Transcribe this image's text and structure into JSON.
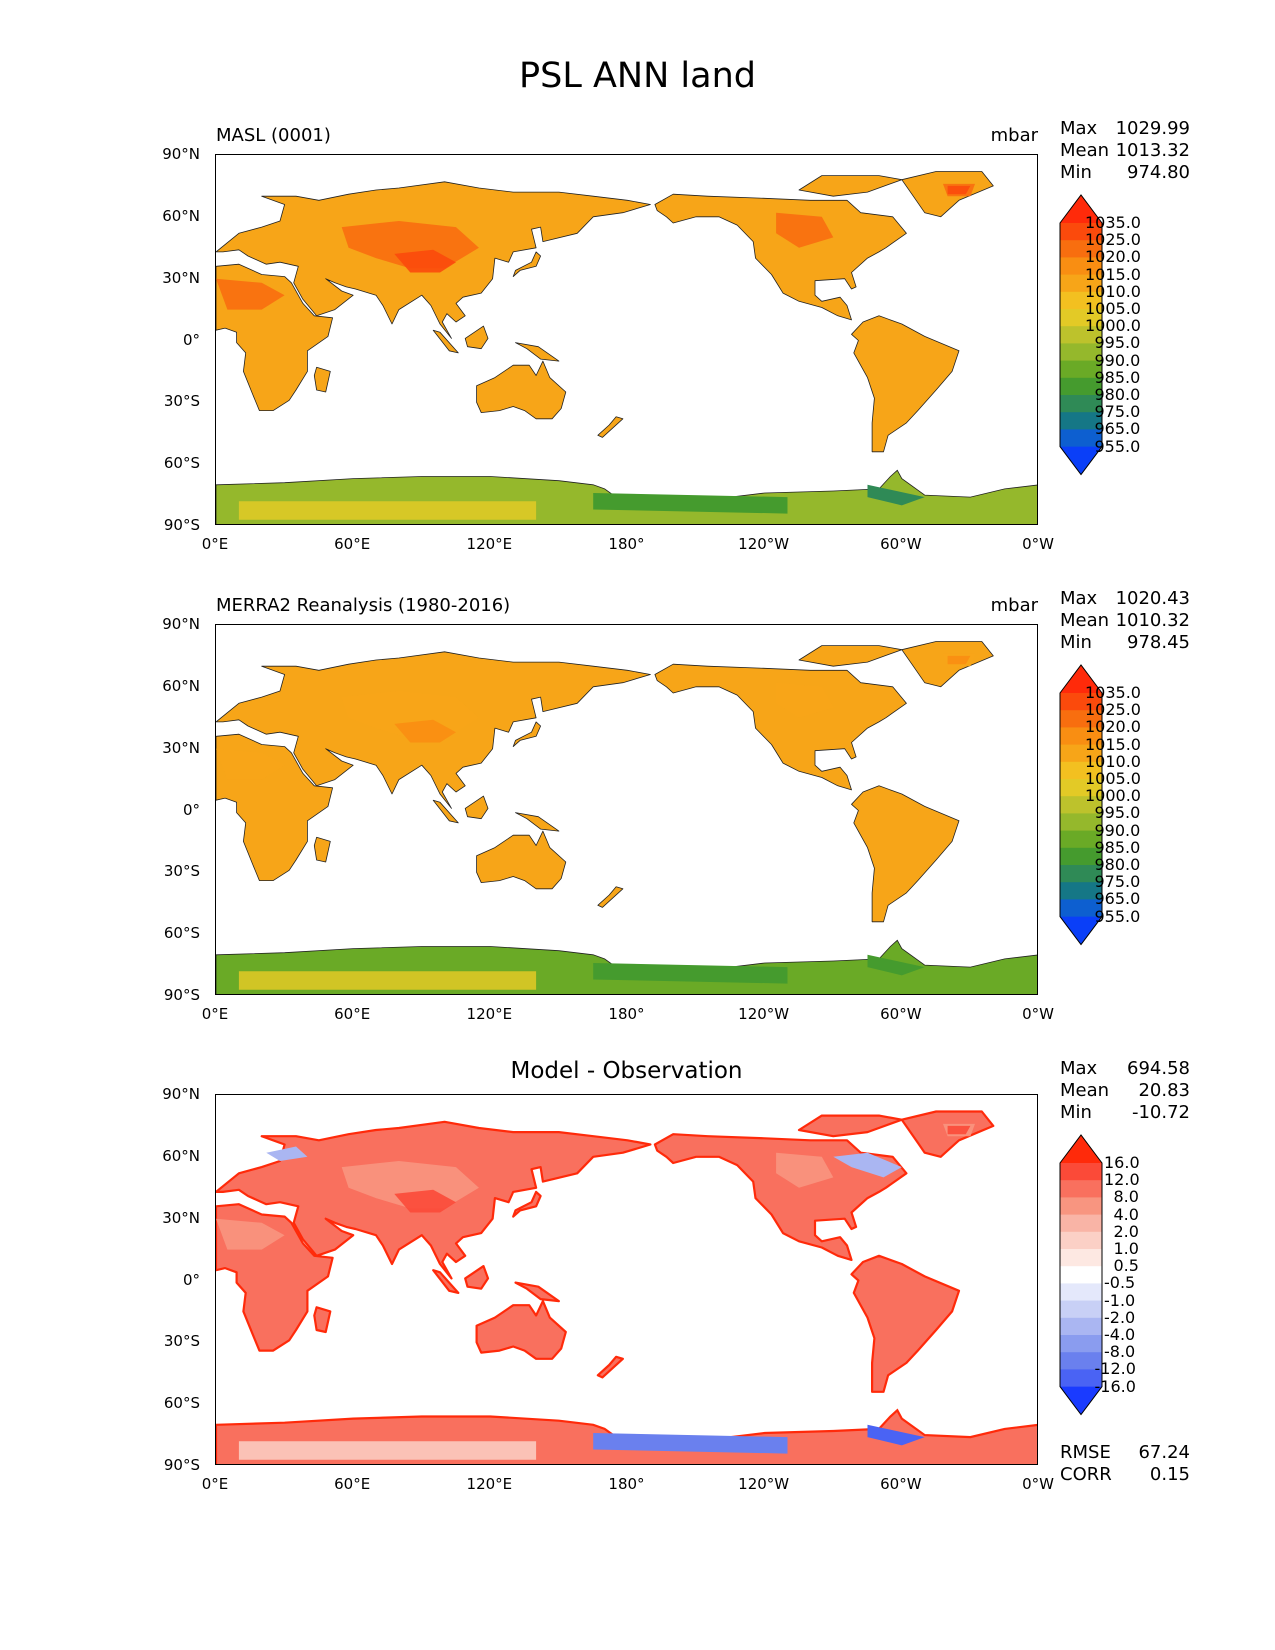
{
  "title": "PSL ANN land",
  "panels": [
    {
      "name": "model",
      "title_left": "MASL (0001)",
      "title_right": "mbar",
      "title_center": "",
      "stats": {
        "max_label": "Max",
        "max": "1029.99",
        "mean_label": "Mean",
        "mean": "1013.32",
        "min_label": "Min",
        "min": "974.80"
      },
      "colorbar": {
        "levels": [
          "1035.0",
          "1025.0",
          "1020.0",
          "1015.0",
          "1010.0",
          "1005.0",
          "1000.0",
          "995.0",
          "990.0",
          "985.0",
          "980.0",
          "975.0",
          "965.0",
          "955.0"
        ],
        "colors": [
          "#ff2a0a",
          "#fb4a0c",
          "#f86e0f",
          "#f98e12",
          "#f7a518",
          "#f3c020",
          "#e3ca26",
          "#bdc22c",
          "#95b82c",
          "#6aaa26",
          "#459b2e",
          "#2f8a56",
          "#157786",
          "#0d5fd0",
          "#0a3ff8"
        ]
      }
    },
    {
      "name": "observation",
      "title_left": "MERRA2 Reanalysis (1980-2016)",
      "title_right": "mbar",
      "title_center": "",
      "stats": {
        "max_label": "Max",
        "max": "1020.43",
        "mean_label": "Mean",
        "mean": "1010.32",
        "min_label": "Min",
        "min": "978.45"
      },
      "colorbar": {
        "levels": [
          "1035.0",
          "1025.0",
          "1020.0",
          "1015.0",
          "1010.0",
          "1005.0",
          "1000.0",
          "995.0",
          "990.0",
          "985.0",
          "980.0",
          "975.0",
          "965.0",
          "955.0"
        ],
        "colors": [
          "#ff2a0a",
          "#fb4a0c",
          "#f86e0f",
          "#f98e12",
          "#f7a518",
          "#f3c020",
          "#e3ca26",
          "#bdc22c",
          "#95b82c",
          "#6aaa26",
          "#459b2e",
          "#2f8a56",
          "#157786",
          "#0d5fd0",
          "#0a3ff8"
        ]
      }
    },
    {
      "name": "difference",
      "title_left": "",
      "title_right": "",
      "title_center": "Model - Observation",
      "stats": {
        "max_label": "Max",
        "max": "694.58",
        "mean_label": "Mean",
        "mean": "20.83",
        "min_label": "Min",
        "min": "-10.72"
      },
      "colorbar": {
        "levels": [
          "16.0",
          "12.0",
          "8.0",
          "4.0",
          "2.0",
          "1.0",
          "0.5",
          "-0.5",
          "-1.0",
          "-2.0",
          "-4.0",
          "-8.0",
          "-12.0",
          "-16.0"
        ],
        "colors": [
          "#ff2a0a",
          "#fb4a38",
          "#f9705e",
          "#f89580",
          "#f9b4a6",
          "#fbd0c6",
          "#fde8e2",
          "#ffffff",
          "#e4e8fb",
          "#c8d0f6",
          "#aab6f2",
          "#8a9cef",
          "#6a80ee",
          "#4a63f4",
          "#1a3bff"
        ]
      },
      "errors": {
        "rmse_label": "RMSE",
        "rmse": "67.24",
        "corr_label": "CORR",
        "corr": "0.15"
      }
    }
  ],
  "axes": {
    "lat_ticks": [
      "90°N",
      "60°N",
      "30°N",
      "0°",
      "30°S",
      "60°S",
      "90°S"
    ],
    "lon_ticks": [
      "0°E",
      "60°E",
      "120°E",
      "180°",
      "120°W",
      "60°W",
      "0°W"
    ]
  },
  "map_fills": {
    "model": {
      "land": "#f7a518",
      "interior": "#f86e0f",
      "hot": "#fb4a0c",
      "antarctica": "#95b82c",
      "antarctica_low": "#459b2e",
      "antarctica_lowest": "#2f8a56",
      "antarctica_high": "#e3ca26"
    },
    "observation": {
      "land": "#f7a518",
      "interior": "#f7a518",
      "hot": "#f98e12",
      "antarctica": "#6aaa26",
      "antarctica_low": "#459b2e",
      "antarctica_lowest": "#459b2e",
      "antarctica_high": "#e3ca26"
    },
    "difference": {
      "land": "#f9705e",
      "interior": "#f89580",
      "hot": "#fb4a38",
      "antarctica": "#f9705e",
      "antarctica_low": "#6a80ee",
      "antarctica_lowest": "#4a63f4",
      "antarctica_high": "#fbd0c6",
      "coast": "#ff2a0a",
      "cold": "#aab6f2"
    }
  }
}
